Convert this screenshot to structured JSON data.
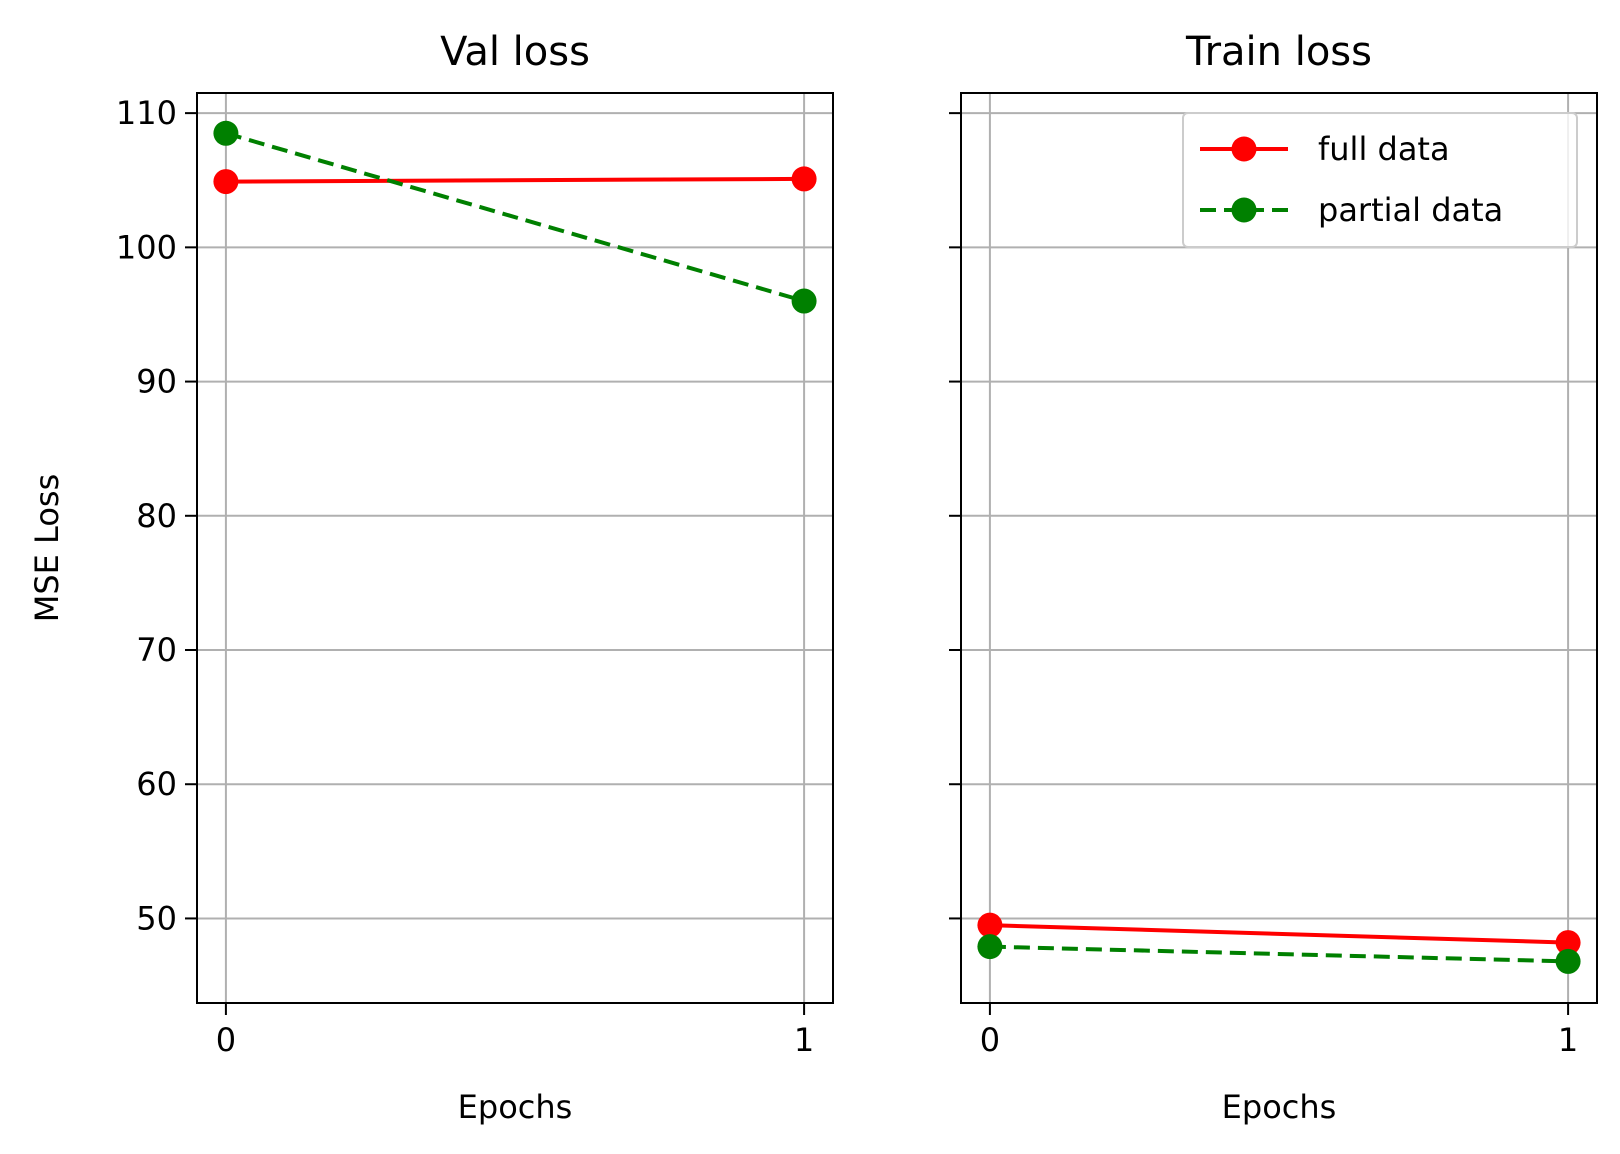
{
  "chart_data": [
    {
      "type": "line",
      "title": "Val loss",
      "xlabel": "Epochs",
      "ylabel": "MSE Loss",
      "x": [
        0,
        1
      ],
      "xticks": [
        "0",
        "1"
      ],
      "ylim": [
        43.7,
        111.5
      ],
      "yticks": [
        "50",
        "60",
        "70",
        "80",
        "90",
        "100",
        "110"
      ],
      "grid": true,
      "series": [
        {
          "name": "full data",
          "values": [
            104.9,
            105.1
          ],
          "color": "#ff0000",
          "dash": "solid"
        },
        {
          "name": "partial data",
          "values": [
            108.5,
            96.0
          ],
          "color": "#008000",
          "dash": "dashed"
        }
      ]
    },
    {
      "type": "line",
      "title": "Train loss",
      "xlabel": "Epochs",
      "ylabel": "",
      "x": [
        0,
        1
      ],
      "xticks": [
        "0",
        "1"
      ],
      "ylim": [
        43.7,
        111.5
      ],
      "yticks": [],
      "grid": true,
      "legend": "top-right",
      "series": [
        {
          "name": "full data",
          "values": [
            49.5,
            48.2
          ],
          "color": "#ff0000",
          "dash": "solid"
        },
        {
          "name": "partial data",
          "values": [
            47.9,
            46.8
          ],
          "color": "#008000",
          "dash": "dashed"
        }
      ]
    }
  ]
}
